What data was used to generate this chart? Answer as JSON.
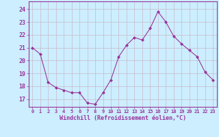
{
  "x": [
    0,
    1,
    2,
    3,
    4,
    5,
    6,
    7,
    8,
    9,
    10,
    11,
    12,
    13,
    14,
    15,
    16,
    17,
    18,
    19,
    20,
    21,
    22,
    23
  ],
  "y": [
    21.0,
    20.5,
    18.3,
    17.9,
    17.7,
    17.5,
    17.5,
    16.7,
    16.6,
    17.5,
    18.5,
    20.3,
    21.2,
    21.8,
    21.6,
    22.5,
    23.8,
    23.0,
    21.9,
    21.3,
    20.8,
    20.3,
    19.1,
    18.5
  ],
  "line_color": "#993399",
  "marker": "D",
  "marker_size": 2,
  "bg_color": "#cceeff",
  "grid_color": "#c8b8c8",
  "xlabel": "Windchill (Refroidissement éolien,°C)",
  "ylabel_ticks": [
    17,
    18,
    19,
    20,
    21,
    22,
    23,
    24
  ],
  "ylim": [
    16.4,
    24.6
  ],
  "xlim": [
    -0.5,
    23.5
  ],
  "tick_label_color": "#993399",
  "xlabel_color": "#993399",
  "axis_color": "#993399",
  "spine_color": "#993399"
}
